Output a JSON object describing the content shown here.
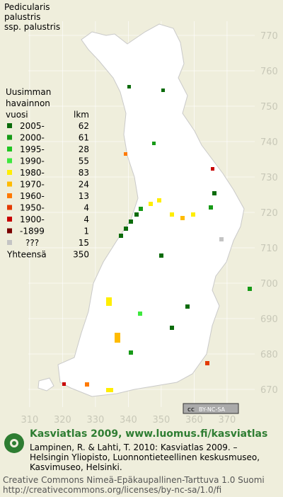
{
  "title": [
    "Pedicularis",
    "palustris",
    "ssp. palustris"
  ],
  "legend": {
    "header": [
      "Uusimman",
      "havainnon"
    ],
    "col_year": "vuosi",
    "col_count": "lkm",
    "rows": [
      {
        "label": "2005-",
        "count": 62,
        "color": "#0b6b0b"
      },
      {
        "label": "2000-",
        "count": 61,
        "color": "#179a17"
      },
      {
        "label": "1995-",
        "count": 28,
        "color": "#22c522"
      },
      {
        "label": "1990-",
        "count": 55,
        "color": "#3ee83e"
      },
      {
        "label": "1980-",
        "count": 83,
        "color": "#ffee00"
      },
      {
        "label": "1970-",
        "count": 24,
        "color": "#ffbb00"
      },
      {
        "label": "1960-",
        "count": 13,
        "color": "#ff7a00"
      },
      {
        "label": "1950-",
        "count": 4,
        "color": "#e33a00"
      },
      {
        "label": "1900-",
        "count": 4,
        "color": "#c80000"
      },
      {
        "label": "-1899",
        "count": 1,
        "color": "#7a0000"
      },
      {
        "label": "???",
        "count": 15,
        "color": "#c4c4c4"
      }
    ],
    "total_label": "Yhteensä",
    "total": 350
  },
  "map": {
    "xlim": [
      301,
      387
    ],
    "ylim": [
      660,
      780
    ],
    "xticks": [
      310,
      320,
      330,
      340,
      350,
      360,
      370
    ],
    "yticks": [
      670,
      680,
      690,
      700,
      710,
      720,
      730,
      740,
      750,
      760,
      770
    ]
  },
  "badge": {
    "cc": "cc",
    "text": "BY-NC-SA"
  },
  "footer": {
    "site": "Kasviatlas 2009, www.luomus.fi/kasviatlas",
    "citation": [
      "Lampinen, R. & Lahti, T. 2010: Kasviatlas 2009. –",
      "Helsingin Yliopisto, Luonnontieteellinen keskusmuseo,",
      "Kasvimuseo, Helsinki."
    ],
    "license": [
      "Creative Commons Nimeä-Epäkaupallinen-Tarttuva 1.0 Suomi",
      "http://creativecommons.org/licenses/by-nc-sa/1.0/fi"
    ]
  }
}
